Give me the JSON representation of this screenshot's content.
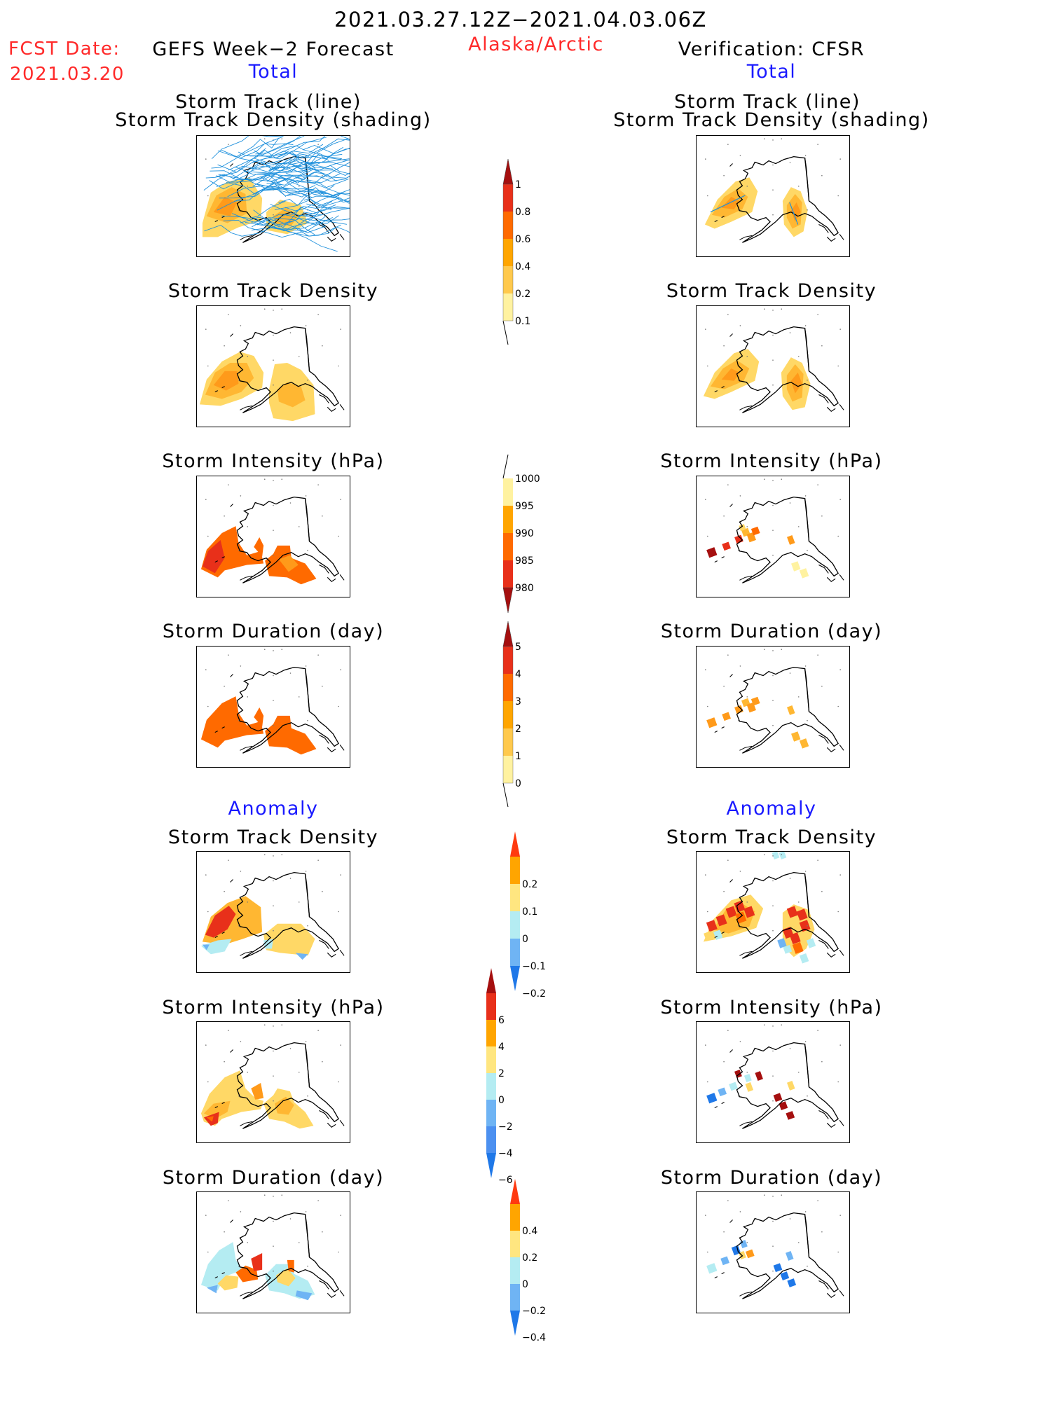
{
  "header": {
    "date_range": "2021.03.27.12Z−2021.04.03.06Z",
    "fcst_label": "FCST Date:",
    "fcst_date": "2021.03.20",
    "left_title": "GEFS Week−2 Forecast",
    "region": "Alaska/Arctic",
    "right_title": "Verification: CFSR",
    "left_total": "Total",
    "right_total": "Total"
  },
  "sections": {
    "anomaly_left": "Anomaly",
    "anomaly_right": "Anomaly"
  },
  "panel_titles": {
    "track_line": "Storm Track (line)",
    "track_density_shading": "Storm Track Density (shading)",
    "track_density": "Storm Track Density",
    "intensity": "Storm Intensity (hPa)",
    "duration": "Storm Duration (day)"
  },
  "colorbars": {
    "density_total": {
      "labels": [
        "1",
        "0.8",
        "0.6",
        "0.4",
        "0.2",
        "0.1"
      ],
      "colors": [
        "#a50f0f",
        "#e8301a",
        "#ff6a00",
        "#ffa500",
        "#ffc94d",
        "#fff2a0"
      ]
    },
    "intensity_total": {
      "labels": [
        "1000",
        "995",
        "990",
        "985",
        "980"
      ],
      "colors": [
        "#fff2a0",
        "#ffa500",
        "#ff6a00",
        "#e8301a",
        "#a50f0f"
      ]
    },
    "duration_total": {
      "labels": [
        "5",
        "4",
        "3",
        "2",
        "1",
        "0"
      ],
      "colors": [
        "#a50f0f",
        "#e8301a",
        "#ff6a00",
        "#ffa500",
        "#ffc94d",
        "#fff2a0"
      ]
    },
    "density_anom": {
      "labels": [
        "0.2",
        "0.1",
        "0",
        "−0.1",
        "−0.2"
      ],
      "colors": [
        "#ff3a10",
        "#ffa500",
        "#ffe680",
        "#b4ecf2",
        "#6fb4f4",
        "#1f78e8"
      ]
    },
    "intensity_anom": {
      "labels": [
        "6",
        "4",
        "2",
        "0",
        "−2",
        "−4",
        "−6"
      ],
      "colors": [
        "#a50f0f",
        "#e8301a",
        "#ffa500",
        "#ffe680",
        "#b4ecf2",
        "#6fb4f4",
        "#4c90f0",
        "#1f78e8"
      ]
    },
    "duration_anom": {
      "labels": [
        "0.4",
        "0.2",
        "0",
        "−0.2",
        "−0.4"
      ],
      "colors": [
        "#ff3a10",
        "#ffa500",
        "#ffe680",
        "#b4ecf2",
        "#6fb4f4",
        "#1f78e8"
      ]
    }
  },
  "colors": {
    "track_line": "#1e90dc",
    "title_red": "#ff2a2a",
    "title_blue": "#1a1aff"
  }
}
